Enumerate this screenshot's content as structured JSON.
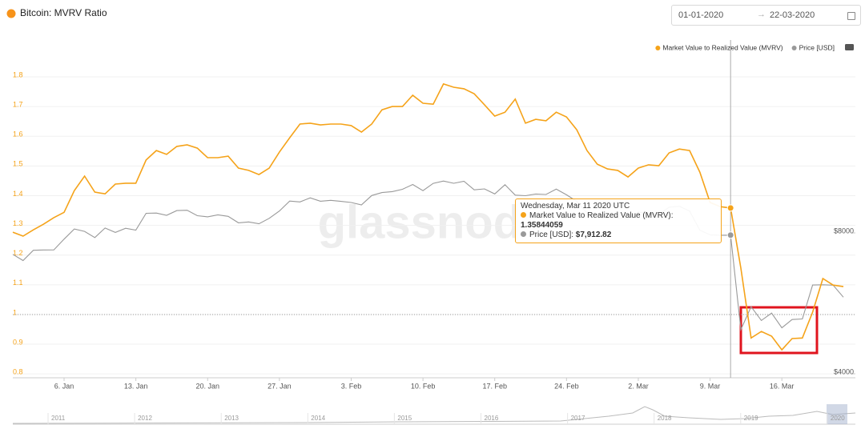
{
  "date_range": {
    "from": "01-01-2020",
    "to": "22-03-2020"
  },
  "chart_data": {
    "type": "line",
    "title": "Bitcoin: MVRV Ratio",
    "watermark": "glassnode",
    "tooltip_title": "Wednesday, Mar 11 2020 UTC",
    "categories": [
      null,
      null,
      null,
      null,
      null,
      "6. Jan",
      null,
      null,
      null,
      null,
      null,
      null,
      "13. Jan",
      null,
      null,
      null,
      null,
      null,
      null,
      "20. Jan",
      null,
      null,
      null,
      null,
      null,
      null,
      "27. Jan",
      null,
      null,
      null,
      null,
      null,
      null,
      "3. Feb",
      null,
      null,
      null,
      null,
      null,
      null,
      "10. Feb",
      null,
      null,
      null,
      null,
      null,
      null,
      "17. Feb",
      null,
      null,
      null,
      null,
      null,
      null,
      "24. Feb",
      null,
      null,
      null,
      null,
      null,
      null,
      "2. Mar",
      null,
      null,
      null,
      null,
      null,
      null,
      "9. Mar",
      null,
      null,
      null,
      null,
      null,
      null,
      "16. Mar",
      null,
      null,
      null,
      null,
      null,
      null
    ],
    "series": [
      {
        "name": "Market Value to Realized Value (MVRV)",
        "color": "#f5a31a",
        "axis": "y",
        "values": [
          1.277,
          1.264,
          1.285,
          1.304,
          1.326,
          1.344,
          1.417,
          1.466,
          1.412,
          1.406,
          1.439,
          1.442,
          1.442,
          1.52,
          1.552,
          1.539,
          1.566,
          1.571,
          1.56,
          1.528,
          1.528,
          1.533,
          1.493,
          1.485,
          1.471,
          1.493,
          1.547,
          1.595,
          1.641,
          1.644,
          1.638,
          1.641,
          1.641,
          1.636,
          1.614,
          1.641,
          1.689,
          1.7,
          1.7,
          1.738,
          1.711,
          1.708,
          1.776,
          1.765,
          1.76,
          1.743,
          1.706,
          1.668,
          1.681,
          1.725,
          1.644,
          1.657,
          1.652,
          1.681,
          1.665,
          1.622,
          1.552,
          1.506,
          1.49,
          1.485,
          1.463,
          1.493,
          1.504,
          1.501,
          1.544,
          1.557,
          1.552,
          1.479,
          1.377,
          1.363,
          1.35844059,
          1.156,
          0.921,
          0.943,
          0.927,
          0.881,
          0.919,
          0.921,
          1.008,
          1.121,
          1.099,
          1.094
        ]
      },
      {
        "name": "Price [USD]",
        "color": "#999999",
        "axis": "y2",
        "values": [
          7200,
          6985,
          7345,
          7357,
          7358,
          7759,
          8156,
          8060,
          7820,
          8195,
          8020,
          8185,
          8110,
          8810,
          8822,
          8725,
          8929,
          8943,
          8706,
          8658,
          8745,
          8680,
          8406,
          8445,
          8367,
          8596,
          8910,
          9358,
          9316,
          9508,
          9350,
          9392,
          9344,
          9293,
          9181,
          9614,
          9756,
          9804,
          9917,
          10151,
          9851,
          10208,
          10326,
          10214,
          10313,
          9889,
          9934,
          9691,
          10142,
          9633,
          9608,
          9686,
          9664,
          9925,
          9650,
          9342,
          8820,
          8784,
          8672,
          8599,
          8563,
          8869,
          8787,
          8755,
          9078,
          9122,
          8909,
          8108,
          7923,
          7909,
          7912.82,
          4970,
          5563,
          5200,
          5392,
          5014,
          5225,
          5238,
          6191,
          6198,
          6185,
          5830
        ],
        "value_labels": [
          null,
          null,
          null,
          null,
          null,
          null,
          null,
          null,
          null,
          null,
          null,
          null,
          null,
          null,
          null,
          null,
          null,
          null,
          null,
          null,
          null,
          null,
          null,
          null,
          null,
          null,
          null,
          null,
          null,
          null,
          null,
          null,
          null,
          null,
          null,
          null,
          null,
          null,
          null,
          null,
          null,
          null,
          null,
          null,
          null,
          null,
          null,
          null,
          null,
          null,
          null,
          null,
          null,
          null,
          null,
          null,
          null,
          null,
          null,
          null,
          null,
          null,
          null,
          null,
          null,
          null,
          null,
          null,
          null,
          null,
          "$7,912.82",
          null,
          null,
          null,
          null,
          null,
          null,
          null,
          null,
          null,
          null,
          null
        ]
      }
    ],
    "ylim": [
      0.787,
      1.897
    ],
    "yticks": [
      0.8,
      0.9,
      1,
      1.1,
      1.2,
      1.3,
      1.4,
      1.5,
      1.6,
      1.7,
      1.8
    ],
    "y2lim": [
      3922,
      19870
    ],
    "y2log": true,
    "y2ticks": [
      {
        "value": 4000,
        "label": "$4000"
      },
      {
        "value": 8000,
        "label": "$8000"
      }
    ],
    "grid": true,
    "hline": 1,
    "legend": "top-right",
    "navigator_labels": [
      "2011",
      "2012",
      "2013",
      "2014",
      "2015",
      "2016",
      "2017",
      "2018",
      "2019",
      "2020"
    ]
  }
}
